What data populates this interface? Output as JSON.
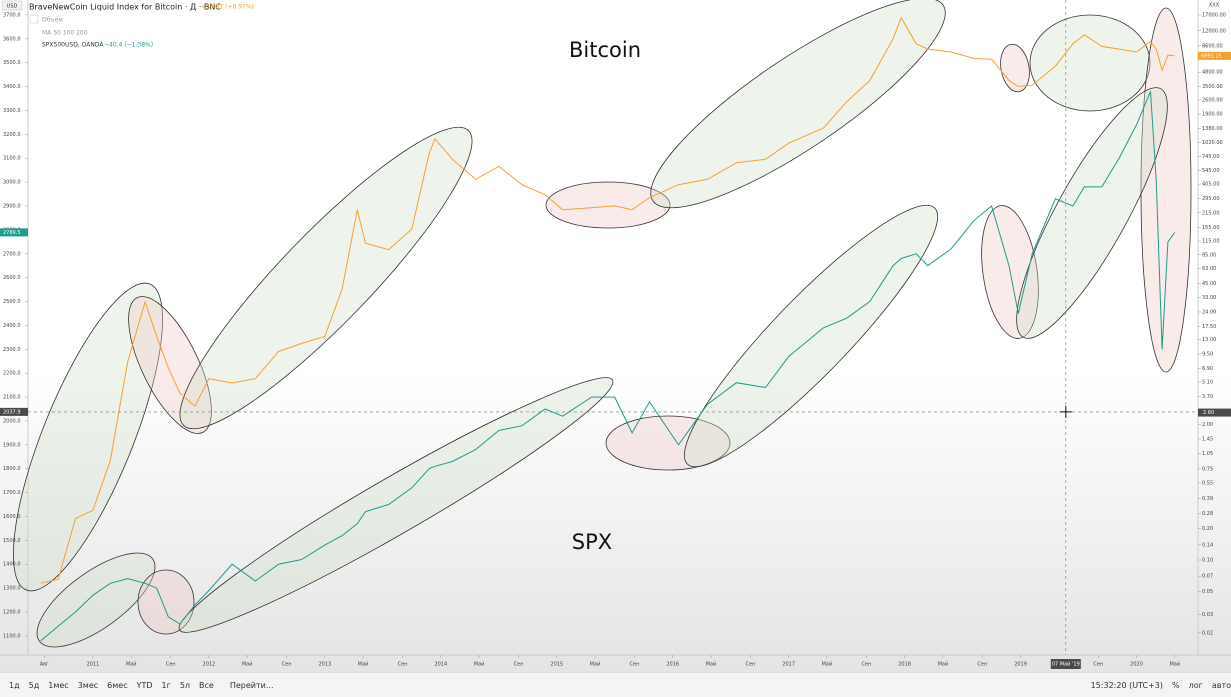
{
  "header": {
    "series_titles": [
      "BraveNewCoin Liquid Index for Bitcoin · Д · BNC",
      "SPX500USD, OANDA"
    ],
    "changes": [
      "+55.87 (+0.97%)",
      "−40.4 (−1.38%)"
    ],
    "indicators": [
      "Объём",
      "MA 50 100 200"
    ],
    "left_axis_unit": "USD",
    "right_axis_unit": "XXX"
  },
  "chart_data": {
    "type": "line",
    "annotations": [
      "Bitcoin",
      "SPX"
    ],
    "x": [
      2010.55,
      2010.7,
      2010.85,
      2011.0,
      2011.15,
      2011.3,
      2011.45,
      2011.55,
      2011.65,
      2011.75,
      2011.88,
      2012.0,
      2012.2,
      2012.4,
      2012.6,
      2012.8,
      2013.0,
      2013.15,
      2013.28,
      2013.35,
      2013.55,
      2013.75,
      2013.9,
      2013.95,
      2014.1,
      2014.3,
      2014.5,
      2014.7,
      2014.9,
      2015.05,
      2015.3,
      2015.5,
      2015.65,
      2015.8,
      2016.05,
      2016.3,
      2016.55,
      2016.8,
      2017.0,
      2017.3,
      2017.5,
      2017.7,
      2017.9,
      2017.97,
      2018.1,
      2018.2,
      2018.4,
      2018.6,
      2018.75,
      2018.9,
      2018.98,
      2019.1,
      2019.3,
      2019.45,
      2019.55,
      2019.7,
      2019.85,
      2020.0,
      2020.12,
      2020.17,
      2020.22,
      2020.27,
      2020.33
    ],
    "series": [
      {
        "name": "SPX500USD, OANDA",
        "color": "#1f9a8c",
        "axis": "y",
        "values": [
          1080,
          1140,
          1200,
          1270,
          1320,
          1340,
          1320,
          1300,
          1180,
          1150,
          1230,
          1290,
          1400,
          1330,
          1400,
          1420,
          1480,
          1520,
          1570,
          1620,
          1650,
          1720,
          1800,
          1810,
          1830,
          1880,
          1960,
          1980,
          2050,
          2020,
          2100,
          2100,
          1950,
          2080,
          1900,
          2070,
          2160,
          2140,
          2270,
          2390,
          2430,
          2500,
          2650,
          2680,
          2700,
          2650,
          2720,
          2840,
          2900,
          2650,
          2450,
          2700,
          2930,
          2900,
          2980,
          2980,
          3100,
          3240,
          3380,
          3000,
          2300,
          2750,
          2789.5
        ]
      },
      {
        "name": "BraveNewCoin Liquid Index for Bitcoin · Д · BNC",
        "color": "#f5a031",
        "axis": "y2",
        "values": [
          0.06,
          0.065,
          0.25,
          0.3,
          0.9,
          8,
          30,
          14,
          7,
          4,
          3,
          5.5,
          5,
          5.5,
          10,
          12,
          14,
          40,
          230,
          110,
          95,
          150,
          800,
          1100,
          700,
          450,
          600,
          400,
          320,
          230,
          240,
          250,
          230,
          300,
          400,
          450,
          650,
          700,
          1000,
          1400,
          2500,
          4000,
          10000,
          16000,
          9000,
          8000,
          7500,
          6500,
          6400,
          4000,
          3500,
          3600,
          5500,
          9000,
          11000,
          8500,
          8000,
          7500,
          9500,
          8000,
          5000,
          7000,
          6891.15
        ]
      }
    ],
    "xlim": [
      2010.44,
      2020.53
    ],
    "ylim": [
      1020,
      3729
    ],
    "y2lim": [
      0.01226,
      19840
    ],
    "y2_log": true,
    "grid": false,
    "xticks": [
      {
        "value": 2010.58,
        "label": "Авг"
      },
      2011,
      {
        "value": 2011.33,
        "label": "Май"
      },
      {
        "value": 2011.67,
        "label": "Сен"
      },
      2012,
      {
        "value": 2012.33,
        "label": "Май"
      },
      {
        "value": 2012.67,
        "label": "Сен"
      },
      2013,
      {
        "value": 2013.33,
        "label": "Май"
      },
      {
        "value": 2013.67,
        "label": "Сен"
      },
      2014,
      {
        "value": 2014.33,
        "label": "Май"
      },
      {
        "value": 2014.67,
        "label": "Сен"
      },
      2015,
      {
        "value": 2015.33,
        "label": "Май"
      },
      {
        "value": 2015.67,
        "label": "Сен"
      },
      2016,
      {
        "value": 2016.33,
        "label": "Май"
      },
      {
        "value": 2016.67,
        "label": "Сен"
      },
      2017,
      {
        "value": 2017.33,
        "label": "Май"
      },
      {
        "value": 2017.67,
        "label": "Сен"
      },
      2018,
      {
        "value": 2018.33,
        "label": "Май"
      },
      {
        "value": 2018.67,
        "label": "Сен"
      },
      2019,
      {
        "value": 2019.67,
        "label": "Сен"
      },
      2020,
      {
        "value": 2020.33,
        "label": "Май"
      }
    ],
    "yticks": [
      {
        "value": 1100,
        "label": "1100.0"
      },
      {
        "value": 1200,
        "label": "1200.0"
      },
      {
        "value": 1300,
        "label": "1300.0"
      },
      {
        "value": 1400,
        "label": "1400.0"
      },
      {
        "value": 1500,
        "label": "1500.0"
      },
      {
        "value": 1600,
        "label": "1600.0"
      },
      {
        "value": 1700,
        "label": "1700.0"
      },
      {
        "value": 1800,
        "label": "1800.0"
      },
      {
        "value": 1900,
        "label": "1900.0"
      },
      {
        "value": 2000,
        "label": "2000.0"
      },
      {
        "value": 2100,
        "label": "2100.0"
      },
      {
        "value": 2200,
        "label": "2200.0"
      },
      {
        "value": 2300,
        "label": "2300.0"
      },
      {
        "value": 2400,
        "label": "2400.0"
      },
      {
        "value": 2500,
        "label": "2500.0"
      },
      {
        "value": 2600,
        "label": "2600.0"
      },
      {
        "value": 2700,
        "label": "2700.0"
      },
      {
        "value": 2800,
        "label": "2800.0"
      },
      {
        "value": 2900,
        "label": "2900.0"
      },
      {
        "value": 3000,
        "label": "3000.0"
      },
      {
        "value": 3100,
        "label": "3100.0"
      },
      {
        "value": 3200,
        "label": "3200.0"
      },
      {
        "value": 3300,
        "label": "3300.0"
      },
      {
        "value": 3400,
        "label": "3400.0"
      },
      {
        "value": 3500,
        "label": "3500.0"
      },
      {
        "value": 3600,
        "label": "3600.0"
      },
      {
        "value": 3700,
        "label": "3700.0"
      }
    ],
    "y2ticks": [
      {
        "value": 17000,
        "label": "17000.00"
      },
      {
        "value": 12000,
        "label": "12000.00"
      },
      {
        "value": 8600,
        "label": "8600.00"
      },
      {
        "value": 4800,
        "label": "4800.00"
      },
      {
        "value": 3500,
        "label": "3500.00"
      },
      {
        "value": 2600,
        "label": "2600.00"
      },
      {
        "value": 1900,
        "label": "1900.00"
      },
      {
        "value": 1380,
        "label": "1380.00"
      },
      {
        "value": 1020,
        "label": "1020.00"
      },
      {
        "value": 745,
        "label": "745.00"
      },
      {
        "value": 545,
        "label": "545.00"
      },
      {
        "value": 405,
        "label": "405.00"
      },
      {
        "value": 295,
        "label": "295.00"
      },
      {
        "value": 215,
        "label": "215.00"
      },
      {
        "value": 155,
        "label": "155.00"
      },
      {
        "value": 115,
        "label": "115.00"
      },
      {
        "value": 85,
        "label": "85.00"
      },
      {
        "value": 63,
        "label": "63.00"
      },
      {
        "value": 45,
        "label": "45.00"
      },
      {
        "value": 33,
        "label": "33.00"
      },
      {
        "value": 24,
        "label": "24.00"
      },
      {
        "value": 17.5,
        "label": "17.50"
      },
      {
        "value": 13,
        "label": "13.00"
      },
      {
        "value": 9.5,
        "label": "9.50"
      },
      {
        "value": 6.9,
        "label": "6.90"
      },
      {
        "value": 5.1,
        "label": "5.10"
      },
      {
        "value": 3.7,
        "label": "3.70"
      },
      {
        "value": 2,
        "label": "2.00"
      },
      {
        "value": 1.45,
        "label": "1.45"
      },
      {
        "value": 1.05,
        "label": "1.05"
      },
      {
        "value": 0.75,
        "label": "0.75"
      },
      {
        "value": 0.55,
        "label": "0.55"
      },
      {
        "value": 0.39,
        "label": "0.39"
      },
      {
        "value": 0.28,
        "label": "0.28"
      },
      {
        "value": 0.2,
        "label": "0.20"
      },
      {
        "value": 0.14,
        "label": "0.14"
      },
      {
        "value": 0.1,
        "label": "0.10"
      },
      {
        "value": 0.07,
        "label": "0.07"
      },
      {
        "value": 0.05,
        "label": "0.05"
      },
      {
        "value": 0.03,
        "label": "0.03"
      },
      {
        "value": 0.02,
        "label": "0.02"
      }
    ],
    "crosshair": {
      "x": {
        "value": 2019.39,
        "label": "07 Май '19"
      },
      "y": 2037.9,
      "y2": {
        "value": 2.6,
        "label": "2.60"
      }
    }
  },
  "toolbar": {
    "ranges": [
      "1д",
      "5д",
      "1мес",
      "3мес",
      "6мес",
      "YTD",
      "1г",
      "5л",
      "Все"
    ],
    "goto": "Перейти...",
    "time": "15:32:20 (UTC+3)",
    "options": [
      "%",
      "лог",
      "авто"
    ]
  }
}
